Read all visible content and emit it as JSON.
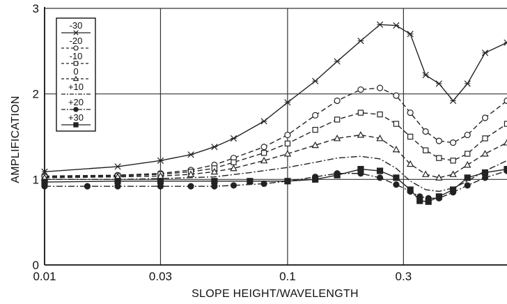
{
  "chart_data": {
    "type": "line",
    "title": "",
    "xlabel": "SLOPE HEIGHT/WAVELENGTH",
    "ylabel": "AMPLIFICATION",
    "x_scale": "log",
    "xlim": [
      0.01,
      0.8
    ],
    "ylim": [
      0,
      3
    ],
    "x_ticks": [
      {
        "value": 0.01,
        "label": "0.01"
      },
      {
        "value": 0.03,
        "label": "0.03"
      },
      {
        "value": 0.1,
        "label": "0.1"
      },
      {
        "value": 0.3,
        "label": "0.3"
      }
    ],
    "y_ticks": [
      {
        "value": 0,
        "label": "0"
      },
      {
        "value": 1,
        "label": "1"
      },
      {
        "value": 2,
        "label": "2"
      },
      {
        "value": 3,
        "label": "3"
      }
    ],
    "grid": true,
    "legend_position": "top-left",
    "line_color": "#222222",
    "series": [
      {
        "name": "-30",
        "marker": "x-cross",
        "dash": "solid",
        "x": [
          0.01,
          0.02,
          0.03,
          0.04,
          0.05,
          0.06,
          0.08,
          0.1,
          0.13,
          0.16,
          0.2,
          0.24,
          0.28,
          0.32,
          0.37,
          0.42,
          0.48,
          0.55,
          0.65,
          0.8
        ],
        "y": [
          1.09,
          1.15,
          1.22,
          1.29,
          1.38,
          1.48,
          1.68,
          1.9,
          2.15,
          2.38,
          2.62,
          2.81,
          2.8,
          2.7,
          2.22,
          2.12,
          1.92,
          2.12,
          2.48,
          2.6
        ]
      },
      {
        "name": "-20",
        "marker": "circle-open",
        "dash": "dashed",
        "x": [
          0.01,
          0.02,
          0.03,
          0.04,
          0.05,
          0.06,
          0.08,
          0.1,
          0.13,
          0.16,
          0.2,
          0.24,
          0.28,
          0.32,
          0.37,
          0.42,
          0.48,
          0.55,
          0.65,
          0.8
        ],
        "y": [
          1.04,
          1.05,
          1.07,
          1.11,
          1.17,
          1.25,
          1.38,
          1.52,
          1.75,
          1.92,
          2.05,
          2.07,
          1.98,
          1.78,
          1.56,
          1.45,
          1.43,
          1.52,
          1.72,
          1.92
        ]
      },
      {
        "name": "-10",
        "marker": "square-open",
        "dash": "dashed",
        "x": [
          0.01,
          0.02,
          0.03,
          0.04,
          0.05,
          0.06,
          0.08,
          0.1,
          0.13,
          0.16,
          0.2,
          0.24,
          0.28,
          0.32,
          0.37,
          0.42,
          0.48,
          0.55,
          0.65,
          0.8
        ],
        "y": [
          1.03,
          1.04,
          1.06,
          1.09,
          1.13,
          1.2,
          1.31,
          1.42,
          1.58,
          1.7,
          1.78,
          1.76,
          1.65,
          1.5,
          1.34,
          1.25,
          1.22,
          1.3,
          1.48,
          1.65
        ]
      },
      {
        "name": "0",
        "marker": "triangle-open",
        "dash": "dashed",
        "x": [
          0.01,
          0.02,
          0.03,
          0.04,
          0.05,
          0.06,
          0.08,
          0.1,
          0.13,
          0.16,
          0.2,
          0.24,
          0.28,
          0.32,
          0.37,
          0.42,
          0.48,
          0.55,
          0.65,
          0.8
        ],
        "y": [
          1.02,
          1.03,
          1.04,
          1.06,
          1.09,
          1.13,
          1.22,
          1.3,
          1.4,
          1.48,
          1.52,
          1.48,
          1.35,
          1.18,
          1.06,
          1.02,
          1.06,
          1.17,
          1.3,
          1.43
        ]
      },
      {
        "name": "+10",
        "marker": "none",
        "dash": "dash-dot",
        "x": [
          0.01,
          0.02,
          0.03,
          0.05,
          0.07,
          0.1,
          0.13,
          0.16,
          0.2,
          0.24,
          0.28,
          0.32,
          0.37,
          0.42,
          0.48,
          0.55,
          0.65,
          0.8
        ],
        "y": [
          1.0,
          1.0,
          1.01,
          1.03,
          1.08,
          1.14,
          1.2,
          1.25,
          1.27,
          1.24,
          1.13,
          0.98,
          0.88,
          0.86,
          0.9,
          0.98,
          1.1,
          1.22
        ]
      },
      {
        "name": "+20",
        "marker": "circle-filled",
        "dash": "dash-dot",
        "x": [
          0.01,
          0.015,
          0.02,
          0.03,
          0.04,
          0.05,
          0.06,
          0.08,
          0.1,
          0.13,
          0.16,
          0.2,
          0.24,
          0.28,
          0.32,
          0.35,
          0.38,
          0.42,
          0.48,
          0.55,
          0.65,
          0.8
        ],
        "y": [
          0.92,
          0.92,
          0.92,
          0.92,
          0.92,
          0.92,
          0.93,
          0.95,
          0.98,
          1.03,
          1.07,
          1.07,
          1.02,
          0.94,
          0.86,
          0.8,
          0.78,
          0.78,
          0.85,
          0.93,
          1.02,
          1.1
        ]
      },
      {
        "name": "+30",
        "marker": "square-filled",
        "dash": "solid",
        "x": [
          0.01,
          0.02,
          0.03,
          0.05,
          0.07,
          0.1,
          0.13,
          0.16,
          0.2,
          0.24,
          0.28,
          0.32,
          0.35,
          0.38,
          0.42,
          0.48,
          0.55,
          0.65,
          0.8
        ],
        "y": [
          0.97,
          0.98,
          0.98,
          0.98,
          0.98,
          0.98,
          1.0,
          1.05,
          1.12,
          1.1,
          1.02,
          0.88,
          0.75,
          0.74,
          0.8,
          0.88,
          1.02,
          1.08,
          1.12
        ]
      }
    ]
  }
}
